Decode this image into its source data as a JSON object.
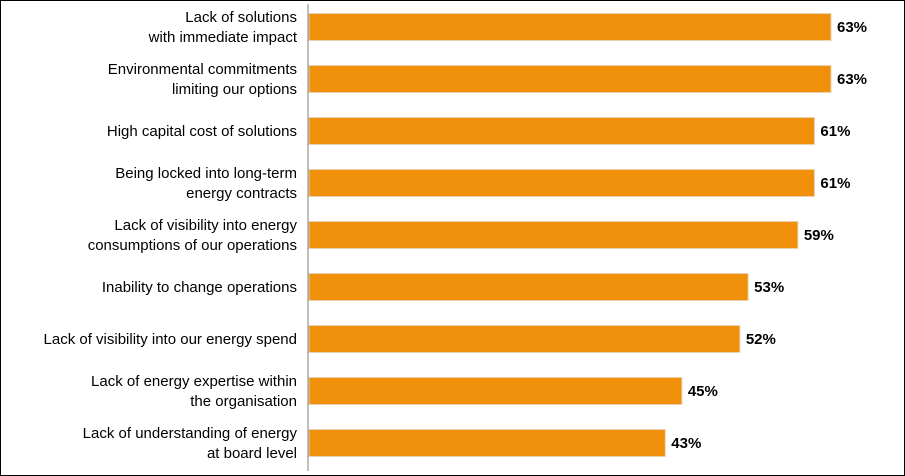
{
  "chart_data": {
    "type": "bar",
    "orientation": "horizontal",
    "title": "",
    "xlabel": "",
    "ylabel": "",
    "xlim": [
      0,
      63
    ],
    "grid": false,
    "legend": "none",
    "value_format": "{v}%",
    "bar_color": "#F0900A",
    "categories": [
      [
        "Lack of solutions",
        "with immediate impact"
      ],
      [
        "Environmental commitments",
        "limiting our options"
      ],
      [
        "High capital cost of solutions"
      ],
      [
        "Being locked into long-term",
        "energy contracts"
      ],
      [
        "Lack of visibility into energy",
        "consumptions of our operations"
      ],
      [
        "Inability to change operations"
      ],
      [
        "Lack of visibility into our energy spend"
      ],
      [
        "Lack of energy expertise within",
        "the organisation"
      ],
      [
        "Lack of understanding of energy",
        "at board level"
      ]
    ],
    "values": [
      63,
      63,
      61,
      61,
      59,
      53,
      52,
      45,
      43
    ],
    "value_labels": [
      "63%",
      "63%",
      "61%",
      "61%",
      "59%",
      "53%",
      "52%",
      "45%",
      "43%"
    ]
  }
}
